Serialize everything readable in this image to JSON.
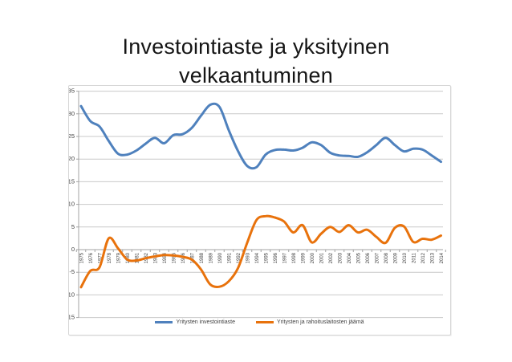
{
  "title": {
    "line1": "Investointiaste ja yksityinen",
    "line2": "velkaantuminen"
  },
  "chart_data": {
    "type": "line",
    "title": "Investointiaste ja yksityinen velkaantuminen",
    "x": [
      1975,
      1976,
      1977,
      1978,
      1979,
      1980,
      1981,
      1982,
      1983,
      1984,
      1985,
      1986,
      1987,
      1988,
      1989,
      1990,
      1991,
      1992,
      1993,
      1994,
      1995,
      1996,
      1997,
      1998,
      1999,
      2000,
      2001,
      2002,
      2003,
      2004,
      2005,
      2006,
      2007,
      2008,
      2009,
      2010,
      2011,
      2012,
      2013,
      2014
    ],
    "series": [
      {
        "name": "Yritysten investointiaste",
        "color": "#4F81BD",
        "values": [
          31.7,
          28.4,
          27.2,
          24.0,
          21.2,
          21.0,
          21.9,
          23.4,
          24.7,
          23.5,
          25.3,
          25.5,
          26.9,
          29.6,
          32.0,
          31.5,
          26.4,
          21.8,
          18.5,
          18.2,
          21.0,
          22.0,
          22.1,
          21.9,
          22.5,
          23.7,
          23.1,
          21.4,
          20.8,
          20.7,
          20.5,
          21.5,
          23.1,
          24.7,
          23.1,
          21.7,
          22.3,
          22.1,
          20.8,
          19.4
        ]
      },
      {
        "name": "Yritysten ja rahoituslaitosten jäämä",
        "color": "#E8720C",
        "values": [
          -8.3,
          -4.7,
          -3.9,
          2.5,
          0.3,
          -2.2,
          -2.4,
          -1.9,
          -1.5,
          -1.2,
          -1.3,
          -1.6,
          -2.2,
          -4.4,
          -7.7,
          -8.2,
          -7.0,
          -4.1,
          1.5,
          6.5,
          7.4,
          7.1,
          6.2,
          3.8,
          5.4,
          1.6,
          3.5,
          5.0,
          3.9,
          5.4,
          3.8,
          4.4,
          2.8,
          1.5,
          4.8,
          5.1,
          1.7,
          2.4,
          2.2,
          3.1
        ]
      }
    ],
    "ylim": [
      -15,
      35
    ],
    "yticks": [
      35,
      30,
      25,
      20,
      15,
      10,
      5,
      0,
      -5,
      -10,
      -15
    ],
    "xlabel": "",
    "ylabel": "",
    "grid": true,
    "smoothed": true,
    "legend_position": "bottom",
    "gridline_color": "#c9c9c9",
    "axis_line_color": "#a3a3a3",
    "axis_text_color": "#3f3f3f"
  }
}
